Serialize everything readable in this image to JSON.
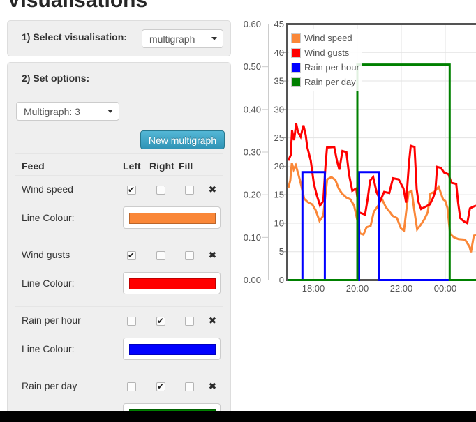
{
  "title": "Visualisations",
  "colors": {
    "panel_bg": "#efefef",
    "button_top": "#54b7d6",
    "button_bottom": "#3094b6",
    "separator": "#e5e5e5",
    "axis_text": "#545454",
    "plot_border": "#545454",
    "gridline": "#e3e3e3"
  },
  "panel1": {
    "label": "1) Select visualisation:",
    "select_value": "multigraph"
  },
  "panel2": {
    "label": "2) Set options:",
    "select_value": "Multigraph: 3",
    "button": "New multigraph",
    "table": {
      "headers": [
        "Feed",
        "Left",
        "Right",
        "Fill"
      ],
      "colour_label": "Line Colour:",
      "remove_icon": "✖",
      "rows": [
        {
          "feed": "Wind speed",
          "left": true,
          "right": false,
          "fill": false,
          "colour": "#fa8738"
        },
        {
          "feed": "Wind gusts",
          "left": true,
          "right": false,
          "fill": false,
          "colour": "#ff0000"
        },
        {
          "feed": "Rain per hour",
          "left": false,
          "right": true,
          "fill": false,
          "colour": "#0000ff"
        },
        {
          "feed": "Rain per day",
          "left": false,
          "right": true,
          "fill": false,
          "colour": "#008000"
        }
      ]
    }
  },
  "chart_data": {
    "type": "line",
    "title": "",
    "xlabel": "",
    "ylabel": "",
    "grid": true,
    "legend_position": "top-left",
    "x_unit": "time (decimal hours, 24 = midnight)",
    "x_range_hours": [
      16.857,
      25.397
    ],
    "x_ticks": [
      {
        "t": 18,
        "label": "18:00"
      },
      {
        "t": 20,
        "label": "20:00"
      },
      {
        "t": 22,
        "label": "22:00"
      },
      {
        "t": 24,
        "label": "00:00"
      }
    ],
    "y_axis_wind": {
      "side": "left-inner",
      "min": 0,
      "max": 45,
      "tick_step": 5,
      "tick_labels": [
        "0",
        "5",
        "10",
        "15",
        "20",
        "25",
        "30",
        "35",
        "40",
        "45"
      ]
    },
    "y_axis_rain": {
      "side": "left-outer",
      "min": 0,
      "max": 0.6,
      "tick_labels": [
        "0.00",
        "0.10",
        "0.20",
        "0.30",
        "0.40",
        "0.50",
        "0.60"
      ]
    },
    "series": [
      {
        "name": "Wind speed",
        "color": "#fa8738",
        "axis": "wind",
        "points": [
          [
            16.86,
            16.2
          ],
          [
            16.95,
            17.5
          ],
          [
            17.02,
            20.6
          ],
          [
            17.1,
            19.4
          ],
          [
            17.2,
            20.2
          ],
          [
            17.33,
            18.4
          ],
          [
            17.45,
            16.6
          ],
          [
            17.58,
            14.3
          ],
          [
            17.75,
            13.7
          ],
          [
            17.95,
            13.3
          ],
          [
            18.1,
            12.3
          ],
          [
            18.28,
            10.4
          ],
          [
            18.45,
            11.3
          ],
          [
            18.55,
            15.0
          ],
          [
            18.63,
            17.7
          ],
          [
            18.82,
            18.1
          ],
          [
            19.0,
            17.6
          ],
          [
            19.15,
            16.1
          ],
          [
            19.3,
            15.2
          ],
          [
            19.5,
            14.5
          ],
          [
            19.68,
            14.2
          ],
          [
            19.85,
            13.1
          ],
          [
            20.0,
            10.5
          ],
          [
            20.12,
            8.2
          ],
          [
            20.28,
            8.0
          ],
          [
            20.42,
            9.3
          ],
          [
            20.6,
            9.5
          ],
          [
            20.75,
            12.0
          ],
          [
            20.95,
            13.1
          ],
          [
            21.1,
            14.4
          ],
          [
            21.3,
            12.8
          ],
          [
            21.45,
            12.1
          ],
          [
            21.6,
            11.3
          ],
          [
            21.8,
            10.9
          ],
          [
            21.98,
            9.1
          ],
          [
            22.12,
            8.7
          ],
          [
            22.25,
            13.0
          ],
          [
            22.33,
            15.4
          ],
          [
            22.47,
            15.7
          ],
          [
            22.6,
            12.0
          ],
          [
            22.72,
            8.9
          ],
          [
            22.88,
            9.7
          ],
          [
            23.05,
            10.7
          ],
          [
            23.2,
            11.9
          ],
          [
            23.32,
            15.2
          ],
          [
            23.5,
            15.5
          ],
          [
            23.7,
            16.4
          ],
          [
            23.9,
            14.2
          ],
          [
            24.0,
            13.9
          ],
          [
            24.1,
            12.7
          ],
          [
            24.22,
            8.1
          ],
          [
            24.4,
            7.5
          ],
          [
            24.6,
            7.2
          ],
          [
            24.9,
            7.1
          ],
          [
            25.1,
            5.9
          ],
          [
            25.17,
            4.9
          ],
          [
            25.3,
            7.8
          ],
          [
            25.4,
            7.9
          ]
        ]
      },
      {
        "name": "Wind gusts",
        "color": "#ff0000",
        "axis": "wind",
        "points": [
          [
            16.86,
            21.0
          ],
          [
            16.97,
            22.0
          ],
          [
            17.03,
            26.3
          ],
          [
            17.12,
            24.6
          ],
          [
            17.22,
            27.5
          ],
          [
            17.3,
            26.0
          ],
          [
            17.42,
            25.2
          ],
          [
            17.55,
            27.2
          ],
          [
            17.65,
            25.5
          ],
          [
            17.72,
            23.4
          ],
          [
            17.88,
            21.0
          ],
          [
            18.02,
            17.0
          ],
          [
            18.15,
            15.0
          ],
          [
            18.3,
            13.1
          ],
          [
            18.45,
            13.9
          ],
          [
            18.55,
            20.0
          ],
          [
            18.62,
            23.3
          ],
          [
            18.95,
            23.4
          ],
          [
            19.07,
            21.0
          ],
          [
            19.18,
            19.4
          ],
          [
            19.32,
            22.7
          ],
          [
            19.5,
            22.5
          ],
          [
            19.62,
            18.6
          ],
          [
            19.77,
            15.7
          ],
          [
            19.95,
            16.1
          ],
          [
            20.08,
            11.9
          ],
          [
            20.35,
            11.5
          ],
          [
            20.47,
            14.3
          ],
          [
            20.58,
            17.5
          ],
          [
            20.72,
            18.1
          ],
          [
            20.88,
            15.4
          ],
          [
            21.05,
            14.0
          ],
          [
            21.22,
            15.5
          ],
          [
            21.45,
            15.3
          ],
          [
            21.62,
            17.9
          ],
          [
            21.88,
            17.7
          ],
          [
            22.1,
            16.1
          ],
          [
            22.22,
            13.6
          ],
          [
            22.35,
            20.6
          ],
          [
            22.43,
            23.6
          ],
          [
            22.6,
            23.4
          ],
          [
            22.7,
            16.0
          ],
          [
            22.78,
            13.7
          ],
          [
            22.9,
            12.5
          ],
          [
            23.1,
            12.9
          ],
          [
            23.3,
            13.3
          ],
          [
            23.45,
            14.5
          ],
          [
            23.55,
            15.7
          ],
          [
            23.63,
            19.9
          ],
          [
            23.8,
            19.7
          ],
          [
            23.95,
            18.9
          ],
          [
            24.15,
            18.6
          ],
          [
            24.27,
            17.1
          ],
          [
            24.5,
            16.9
          ],
          [
            24.58,
            13.7
          ],
          [
            24.68,
            10.9
          ],
          [
            24.85,
            10.3
          ],
          [
            25.0,
            10.0
          ],
          [
            25.12,
            12.6
          ],
          [
            25.28,
            12.9
          ],
          [
            25.4,
            13.1
          ]
        ]
      },
      {
        "name": "Rain per hour",
        "color": "#0000ff",
        "axis": "rain",
        "points": [
          [
            16.86,
            0
          ],
          [
            17.5,
            0
          ],
          [
            17.5,
            0.253
          ],
          [
            18.52,
            0.253
          ],
          [
            18.52,
            0
          ],
          [
            20.08,
            0
          ],
          [
            20.08,
            0.253
          ],
          [
            20.98,
            0.253
          ],
          [
            20.98,
            0
          ],
          [
            25.4,
            0
          ]
        ]
      },
      {
        "name": "Rain per day",
        "color": "#008000",
        "axis": "rain",
        "points": [
          [
            16.86,
            0
          ],
          [
            20.0,
            0
          ],
          [
            20.0,
            0.505
          ],
          [
            24.2,
            0.505
          ],
          [
            24.2,
            0
          ],
          [
            25.4,
            0
          ]
        ]
      }
    ]
  }
}
